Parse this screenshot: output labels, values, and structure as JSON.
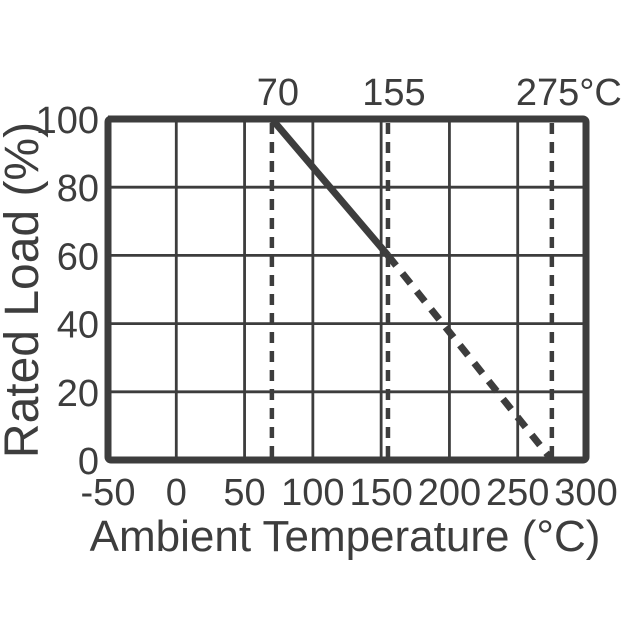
{
  "colors": {
    "ink": "#3d3d3d",
    "background": "#ffffff"
  },
  "chart_data": {
    "type": "line",
    "xlabel": "Ambient Temperature (°C)",
    "ylabel": "Rated Load (%)",
    "xlim": [
      -50,
      300
    ],
    "ylim": [
      0,
      100
    ],
    "x_ticks": [
      -50,
      0,
      50,
      100,
      150,
      200,
      250,
      300
    ],
    "y_ticks": [
      0,
      20,
      40,
      60,
      80,
      100
    ],
    "grid": true,
    "legend": "none",
    "reference_lines": [
      {
        "x": 70,
        "label": "70",
        "style": "dashed"
      },
      {
        "x": 155,
        "label": "155",
        "style": "dashed"
      },
      {
        "x": 275,
        "label": "275°C",
        "style": "dashed"
      }
    ],
    "series": [
      {
        "name": "rated-load-solid",
        "style": "solid",
        "points": [
          {
            "x": -50,
            "y": 100
          },
          {
            "x": 70,
            "y": 100
          },
          {
            "x": 155,
            "y": 60
          }
        ]
      },
      {
        "name": "rated-load-dashed-extension",
        "style": "dashed",
        "points": [
          {
            "x": 155,
            "y": 60
          },
          {
            "x": 275,
            "y": 0
          }
        ]
      }
    ]
  }
}
